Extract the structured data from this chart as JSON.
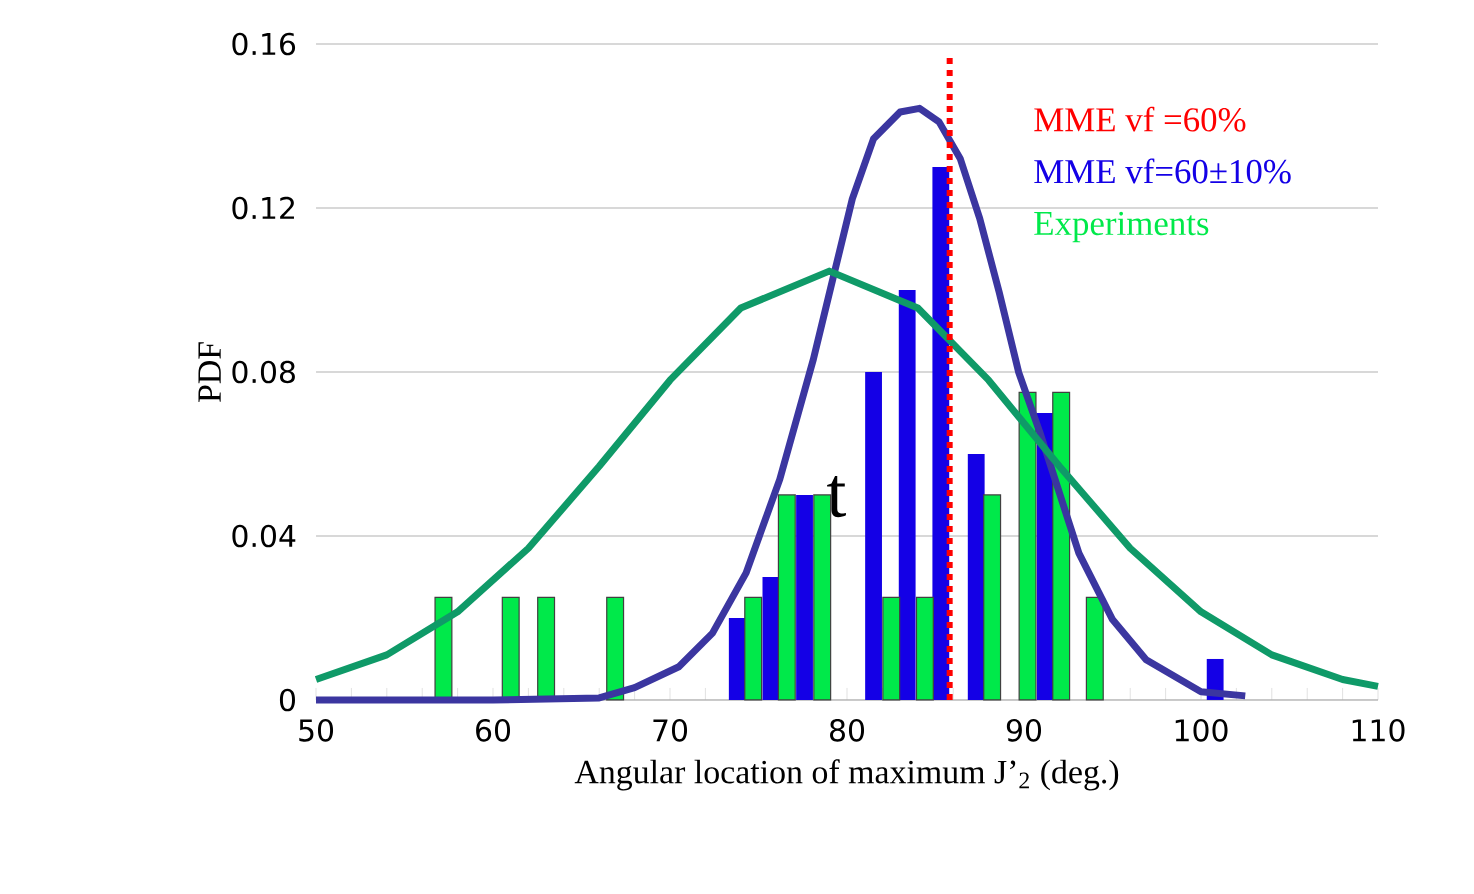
{
  "chart_data": {
    "type": "bar",
    "xlabel": "Angular location of maximum J’$_{2}$   (deg.)",
    "ylabel": "PDF",
    "xlim": [
      50,
      110
    ],
    "xticks": [
      50,
      60,
      70,
      80,
      90,
      100,
      110
    ],
    "ylim": [
      0,
      0.16
    ],
    "yticks": [
      0,
      0.04,
      0.08,
      0.12,
      0.16
    ],
    "grid": "y",
    "legend": "top right",
    "annotations": [
      "t"
    ],
    "series": [
      {
        "type": "line",
        "name": "MME vf =60%",
        "color": "#ff0000",
        "line_style": "dotted",
        "x": [
          85.8,
          85.8
        ],
        "values": [
          0,
          0.158
        ]
      },
      {
        "name": "MME vf=60±10%",
        "color": "#1400e6",
        "x": [
          73.8,
          75.7,
          77.6,
          81.5,
          83.4,
          85.3,
          87.3,
          91.2,
          100.8
        ],
        "values": [
          0.02,
          0.03,
          0.05,
          0.08,
          0.1,
          0.13,
          0.06,
          0.07,
          0.01
        ]
      },
      {
        "name": "Experiments",
        "color": "#00e94a",
        "x": [
          57.2,
          61.0,
          63.0,
          66.9,
          74.7,
          76.6,
          78.6,
          82.5,
          84.4,
          88.2,
          90.2,
          92.1,
          94.0
        ],
        "values": [
          0.025,
          0.025,
          0.025,
          0.025,
          0.025,
          0.05,
          0.05,
          0.025,
          0.025,
          0.05,
          0.075,
          0.075,
          0.025
        ]
      },
      {
        "type": "line",
        "color": "#3b36a0",
        "line_style": "solid",
        "x": [
          50,
          60,
          66,
          68,
          70.5,
          72.4,
          74.3,
          76.2,
          78.1,
          79.2,
          80.3,
          81.5,
          83.0,
          84.1,
          85.2,
          86.4,
          87.5,
          88.6,
          89.7,
          90.9,
          92.0,
          93.1,
          95.0,
          96.9,
          100,
          102.5
        ],
        "values": [
          0,
          0,
          0.0005,
          0.003,
          0.0081,
          0.0163,
          0.031,
          0.0538,
          0.0831,
          0.1027,
          0.1222,
          0.1369,
          0.1434,
          0.1443,
          0.141,
          0.132,
          0.1174,
          0.0994,
          0.0799,
          0.0652,
          0.0505,
          0.0358,
          0.0196,
          0.0098,
          0.002,
          0.001
        ]
      },
      {
        "type": "line",
        "color": "#0f9a68",
        "line_style": "solid",
        "x": [
          50,
          54,
          58,
          62,
          66,
          70,
          74,
          79,
          84,
          88,
          92,
          96,
          100,
          104,
          108,
          110
        ],
        "values": [
          0.005,
          0.011,
          0.0215,
          0.037,
          0.057,
          0.078,
          0.0956,
          0.1046,
          0.0956,
          0.078,
          0.057,
          0.037,
          0.0215,
          0.011,
          0.005,
          0.0033
        ]
      }
    ]
  }
}
